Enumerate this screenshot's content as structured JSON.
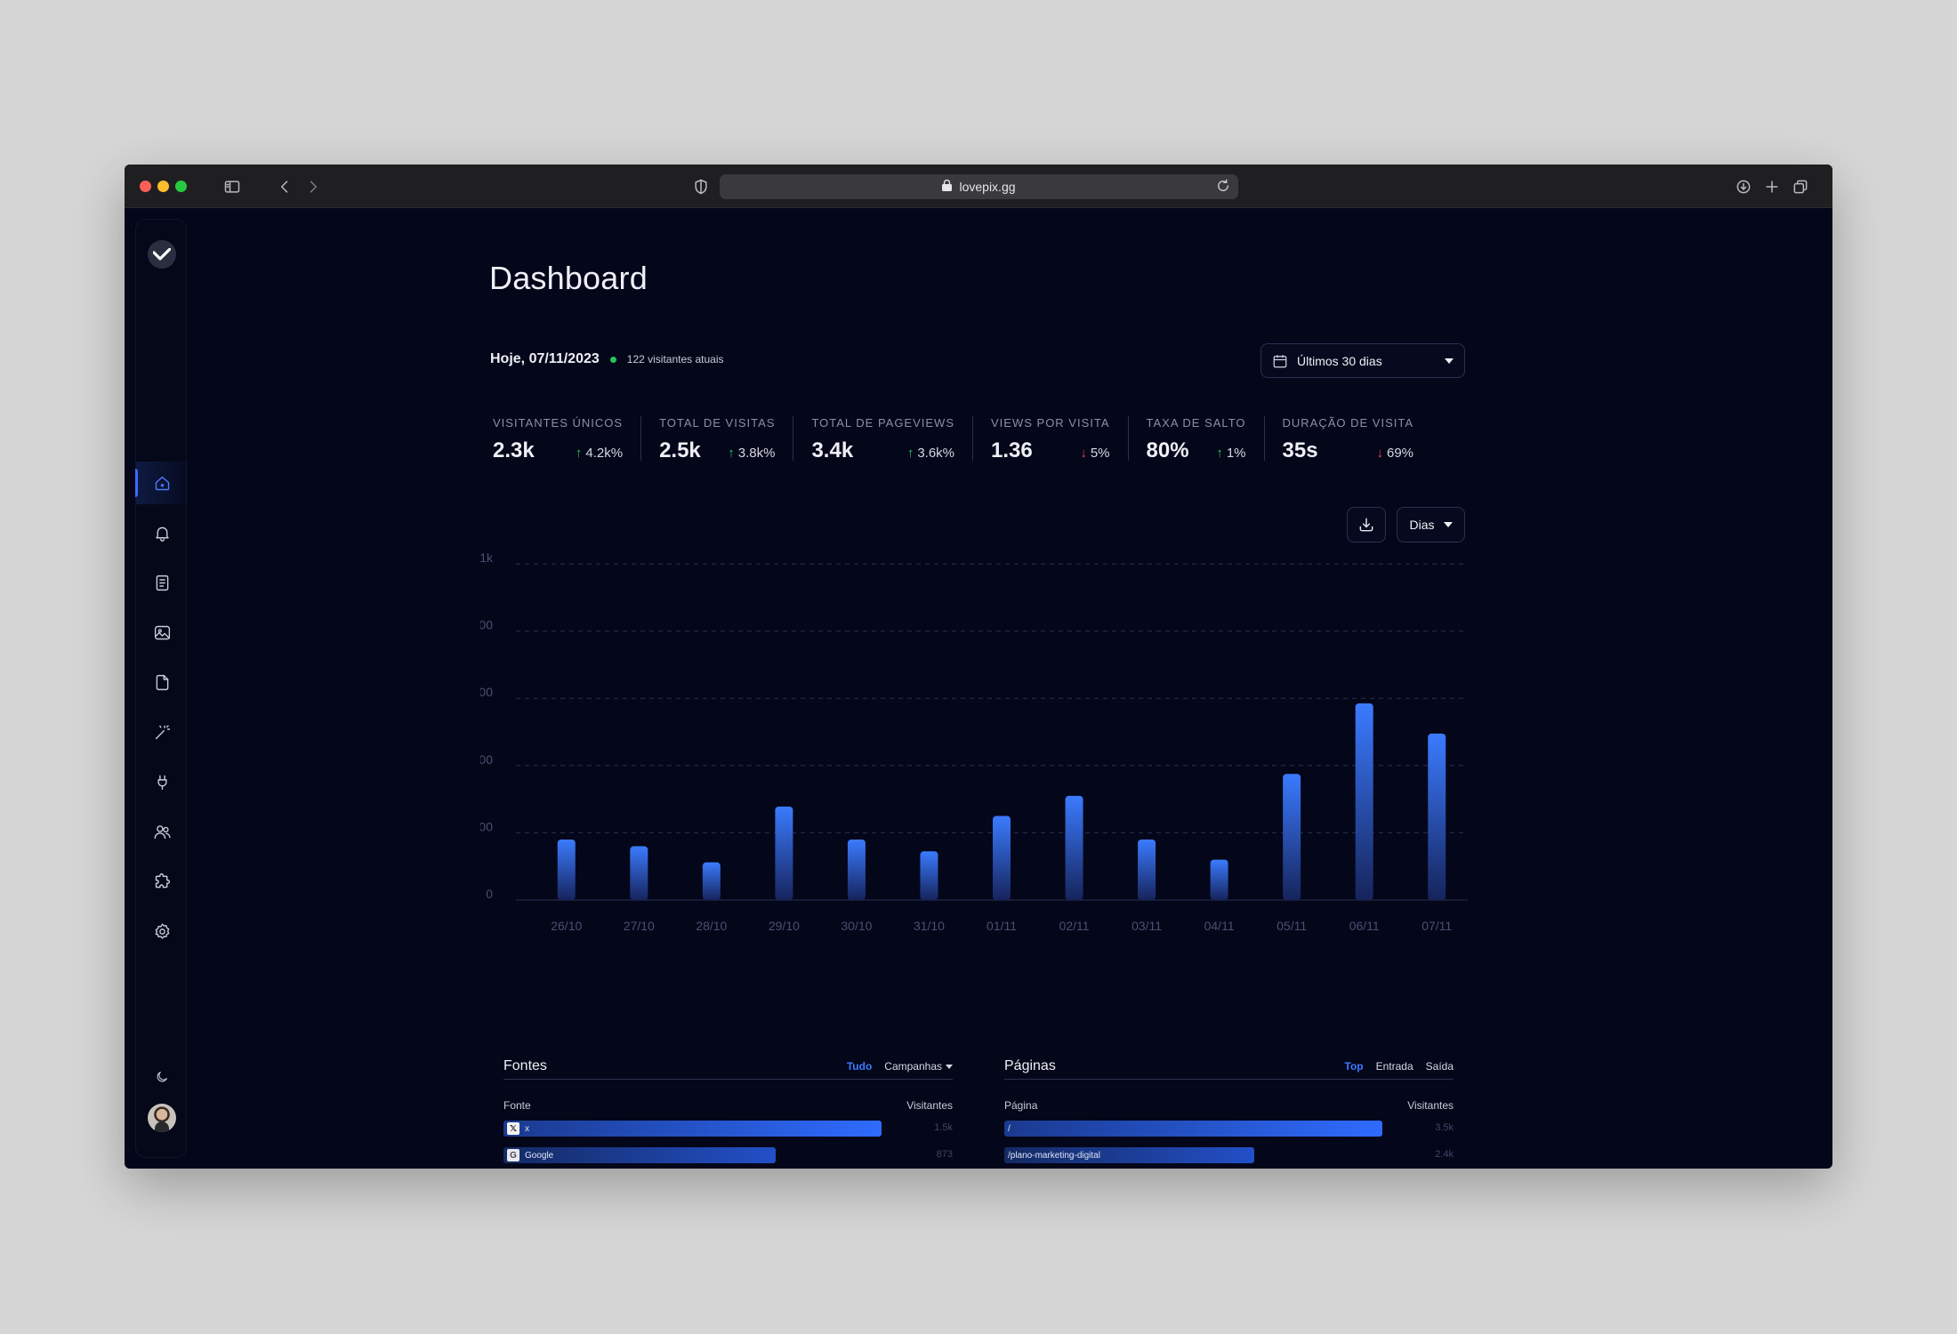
{
  "browser": {
    "url": "lovepix.gg"
  },
  "sidebar": {
    "items": [
      {
        "name": "home-icon",
        "active": true
      },
      {
        "name": "bell-icon",
        "active": false
      },
      {
        "name": "document-icon",
        "active": false
      },
      {
        "name": "image-icon",
        "active": false
      },
      {
        "name": "file-icon",
        "active": false
      },
      {
        "name": "magic-wand-icon",
        "active": false
      },
      {
        "name": "plug-icon",
        "active": false
      },
      {
        "name": "users-icon",
        "active": false
      },
      {
        "name": "puzzle-icon",
        "active": false
      },
      {
        "name": "settings-icon",
        "active": false
      }
    ]
  },
  "page": {
    "title": "Dashboard",
    "today": "Hoje, 07/11/2023",
    "live_visitors": "122 visitantes atuais",
    "range": "Últimos 30 dias",
    "granularity": "Dias"
  },
  "stats": [
    {
      "label": "Visitantes únicos",
      "value": "2.3k",
      "delta": "4.2k%",
      "direction": "up"
    },
    {
      "label": "Total de visitas",
      "value": "2.5k",
      "delta": "3.8k%",
      "direction": "up"
    },
    {
      "label": "Total de pageviews",
      "value": "3.4k",
      "delta": "3.6k%",
      "direction": "up"
    },
    {
      "label": "Views por visita",
      "value": "1.36",
      "delta": "5%",
      "direction": "down"
    },
    {
      "label": "Taxa de salto",
      "value": "80%",
      "delta": "1%",
      "direction": "up"
    },
    {
      "label": "Duração de visita",
      "value": "35s",
      "delta": "69%",
      "direction": "down"
    }
  ],
  "chart_data": {
    "type": "bar",
    "categories": [
      "26/10",
      "27/10",
      "28/10",
      "29/10",
      "30/10",
      "31/10",
      "01/11",
      "02/11",
      "03/11",
      "04/11",
      "05/11",
      "06/11",
      "07/11"
    ],
    "values": [
      180,
      160,
      112,
      278,
      180,
      145,
      250,
      310,
      180,
      120,
      375,
      585,
      495
    ],
    "y_ticks": [
      "0",
      "200",
      "400",
      "600",
      "800",
      "1k"
    ],
    "ylim": [
      0,
      1000
    ],
    "grid": true,
    "bar_color": "#3b7bff"
  },
  "sources": {
    "title": "Fontes",
    "tabs": [
      "Tudo",
      "Campanhas"
    ],
    "col_left": "Fonte",
    "col_right": "Visitantes",
    "rows": [
      {
        "label": "x",
        "value": "1.5k",
        "share": 1.0
      },
      {
        "label": "Google",
        "value": "873",
        "share": 0.72
      },
      {
        "label": "",
        "value": "",
        "share": 0.54
      }
    ]
  },
  "pages": {
    "title": "Páginas",
    "tabs": [
      "Top",
      "Entrada",
      "Saída"
    ],
    "col_left": "Página",
    "col_right": "Visitantes",
    "rows": [
      {
        "label": "/",
        "value": "3.5k",
        "share": 1.0
      },
      {
        "label": "/plano-marketing-digital",
        "value": "2.4k",
        "share": 0.66
      },
      {
        "label": "",
        "value": "",
        "share": 0.4
      }
    ]
  }
}
